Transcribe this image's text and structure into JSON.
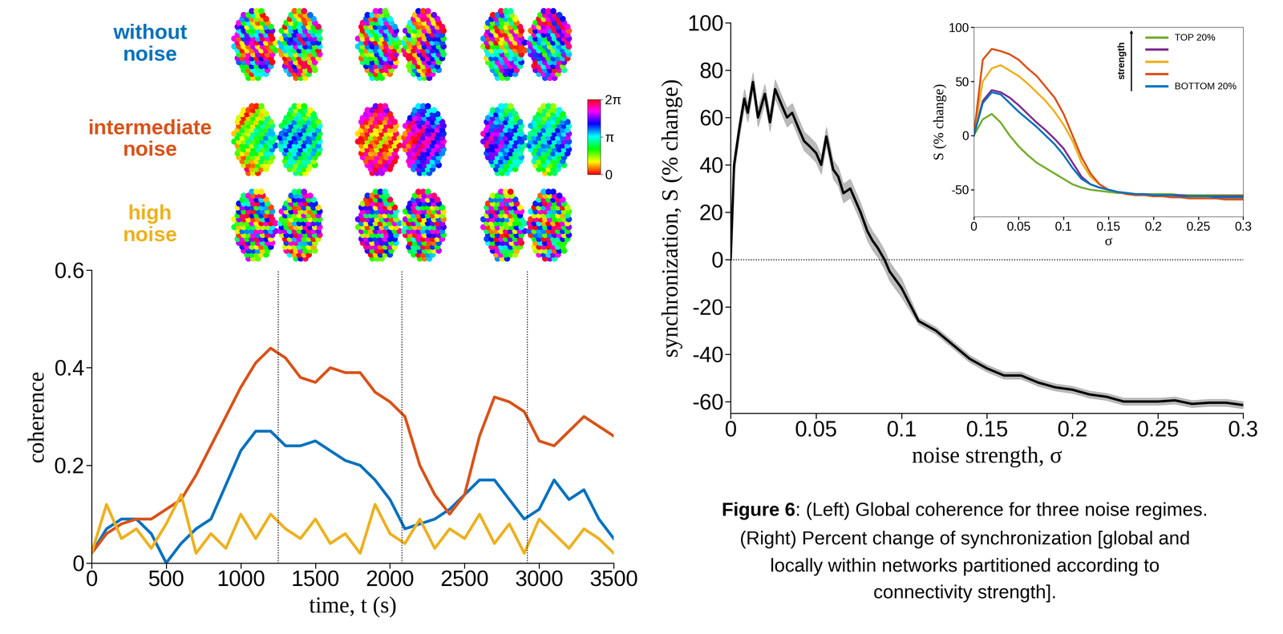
{
  "chart_data": [
    {
      "type": "line",
      "x_label": "time, t (s)",
      "y_label": "coherence",
      "x": [
        0,
        100,
        200,
        300,
        400,
        500,
        600,
        700,
        800,
        900,
        1000,
        1100,
        1200,
        1300,
        1400,
        1500,
        1600,
        1700,
        1800,
        1900,
        2000,
        2100,
        2200,
        2300,
        2400,
        2500,
        2600,
        2700,
        2800,
        2900,
        3000,
        3100,
        3200,
        3300,
        3400,
        3500
      ],
      "xlim": [
        0,
        3500
      ],
      "xticks": [
        0,
        500,
        1000,
        1500,
        2000,
        2500,
        3000,
        3500
      ],
      "ylim": [
        0,
        0.6
      ],
      "yticks": [
        0,
        0.2,
        0.4,
        0.6
      ],
      "snapshot_times": [
        1250,
        2080,
        2920
      ],
      "series": [
        {
          "name": "without noise",
          "color": "#0072BD",
          "values": [
            0.02,
            0.07,
            0.09,
            0.09,
            0.06,
            0.0,
            0.04,
            0.07,
            0.09,
            0.16,
            0.23,
            0.27,
            0.27,
            0.24,
            0.24,
            0.25,
            0.23,
            0.21,
            0.2,
            0.17,
            0.13,
            0.07,
            0.08,
            0.09,
            0.11,
            0.14,
            0.17,
            0.17,
            0.13,
            0.09,
            0.11,
            0.17,
            0.13,
            0.15,
            0.09,
            0.05
          ]
        },
        {
          "name": "intermediate noise",
          "color": "#D95319",
          "values": [
            0.02,
            0.06,
            0.08,
            0.09,
            0.09,
            0.11,
            0.13,
            0.18,
            0.24,
            0.3,
            0.36,
            0.41,
            0.44,
            0.42,
            0.38,
            0.37,
            0.4,
            0.39,
            0.39,
            0.35,
            0.33,
            0.3,
            0.2,
            0.14,
            0.1,
            0.14,
            0.26,
            0.34,
            0.33,
            0.31,
            0.25,
            0.24,
            0.27,
            0.3,
            0.28,
            0.26
          ]
        },
        {
          "name": "high noise",
          "color": "#EDB120",
          "values": [
            0.02,
            0.12,
            0.05,
            0.07,
            0.03,
            0.08,
            0.14,
            0.02,
            0.06,
            0.03,
            0.1,
            0.05,
            0.1,
            0.07,
            0.05,
            0.09,
            0.04,
            0.06,
            0.02,
            0.12,
            0.06,
            0.04,
            0.09,
            0.03,
            0.07,
            0.05,
            0.1,
            0.04,
            0.08,
            0.02,
            0.09,
            0.06,
            0.03,
            0.07,
            0.05,
            0.02
          ]
        }
      ],
      "colorbar": {
        "range": [
          0,
          6.283185307179586
        ],
        "ticks": [
          0,
          {
            "value": 3.141592653589793,
            "label": "π"
          },
          {
            "value": 6.283185307179586,
            "label": "2π"
          }
        ]
      }
    },
    {
      "type": "line",
      "x_label": "noise strength, σ",
      "y_label": "synchronization, S (% change)",
      "xlim": [
        0,
        0.3
      ],
      "xticks": [
        0,
        0.05,
        0.1,
        0.15,
        0.2,
        0.25,
        0.3
      ],
      "ylim": [
        -65,
        100
      ],
      "yticks": [
        -60,
        -40,
        -20,
        0,
        20,
        40,
        60,
        80,
        100
      ],
      "hline": 0,
      "series": [
        {
          "color": "#000000",
          "x": [
            0,
            0.002,
            0.005,
            0.008,
            0.01,
            0.013,
            0.016,
            0.02,
            0.023,
            0.026,
            0.03,
            0.033,
            0.036,
            0.04,
            0.043,
            0.046,
            0.05,
            0.053,
            0.056,
            0.06,
            0.063,
            0.066,
            0.07,
            0.073,
            0.076,
            0.08,
            0.083,
            0.086,
            0.09,
            0.093,
            0.096,
            0.1,
            0.11,
            0.12,
            0.13,
            0.14,
            0.15,
            0.16,
            0.17,
            0.18,
            0.19,
            0.2,
            0.21,
            0.22,
            0.23,
            0.24,
            0.25,
            0.26,
            0.27,
            0.28,
            0.29,
            0.3
          ],
          "values": [
            0,
            40,
            55,
            68,
            62,
            75,
            60,
            70,
            58,
            72,
            65,
            60,
            62,
            55,
            50,
            48,
            45,
            40,
            52,
            38,
            35,
            28,
            30,
            25,
            20,
            12,
            8,
            5,
            0,
            -5,
            -8,
            -12,
            -26,
            -30,
            -36,
            -42,
            -46,
            -49,
            -49,
            -52,
            -54,
            -55,
            -57,
            -58,
            -60,
            -60,
            -60,
            -59.5,
            -61,
            -60.5,
            -60.5,
            -61.5
          ],
          "error": [
            4,
            4,
            4,
            4,
            4,
            4,
            4,
            4,
            4,
            4,
            4,
            4,
            4,
            4,
            4,
            4,
            4,
            4,
            4,
            4,
            4,
            4,
            4,
            4,
            4,
            4,
            4,
            4,
            4,
            4,
            4,
            4,
            1.5,
            1.5,
            1.5,
            1.5,
            1.5,
            1.5,
            1.5,
            1.5,
            1.5,
            1.5,
            1.5,
            1.5,
            1.5,
            1.5,
            1.5,
            1.5,
            1.5,
            1.5,
            1.5,
            1.5
          ]
        }
      ]
    },
    {
      "type": "line",
      "x_label": "σ",
      "y_label": "S (% change)",
      "x": [
        0,
        0.01,
        0.02,
        0.03,
        0.04,
        0.05,
        0.06,
        0.07,
        0.08,
        0.09,
        0.1,
        0.11,
        0.12,
        0.13,
        0.14,
        0.15,
        0.16,
        0.17,
        0.18,
        0.19,
        0.2,
        0.21,
        0.22,
        0.23,
        0.24,
        0.25,
        0.26,
        0.27,
        0.28,
        0.29,
        0.3
      ],
      "xlim": [
        0,
        0.3
      ],
      "xticks": [
        0,
        0.05,
        0.1,
        0.15,
        0.2,
        0.25,
        0.3
      ],
      "ylim": [
        -75,
        100
      ],
      "yticks": [
        -50,
        0,
        50,
        100
      ],
      "legend": "upper right",
      "legend_title": "strength",
      "series": [
        {
          "name": "TOP 20%",
          "color": "#77AC30",
          "values": [
            0,
            15,
            20,
            12,
            0,
            -10,
            -18,
            -25,
            -30,
            -35,
            -40,
            -45,
            -48,
            -50,
            -51,
            -52,
            -53,
            -53,
            -54,
            -54,
            -54,
            -54,
            -54,
            -55,
            -55,
            -55,
            -55,
            -55,
            -55,
            -55,
            -55
          ]
        },
        {
          "name": null,
          "color": "#7E2F8E",
          "values": [
            0,
            32,
            42,
            40,
            35,
            28,
            20,
            12,
            5,
            -3,
            -12,
            -25,
            -38,
            -45,
            -48,
            -50,
            -52,
            -53,
            -54,
            -54,
            -55,
            -55,
            -55,
            -55,
            -56,
            -56,
            -56,
            -56,
            -56,
            -56,
            -56
          ]
        },
        {
          "name": null,
          "color": "#EDB120",
          "values": [
            0,
            50,
            62,
            65,
            60,
            55,
            48,
            40,
            32,
            22,
            10,
            -5,
            -25,
            -38,
            -45,
            -50,
            -52,
            -54,
            -55,
            -55,
            -56,
            -56,
            -56,
            -57,
            -57,
            -57,
            -58,
            -58,
            -58,
            -58,
            -58
          ]
        },
        {
          "name": null,
          "color": "#D95319",
          "values": [
            0,
            70,
            80,
            78,
            75,
            70,
            62,
            55,
            45,
            35,
            20,
            0,
            -20,
            -35,
            -45,
            -50,
            -52,
            -54,
            -55,
            -55,
            -56,
            -56,
            -57,
            -57,
            -58,
            -58,
            -58,
            -58,
            -59,
            -59,
            -59
          ]
        },
        {
          "name": "BOTTOM 20%",
          "color": "#0072BD",
          "values": [
            0,
            30,
            40,
            38,
            30,
            22,
            15,
            8,
            0,
            -8,
            -18,
            -30,
            -40,
            -45,
            -48,
            -50,
            -52,
            -53,
            -54,
            -54,
            -55,
            -55,
            -55,
            -56,
            -56,
            -56,
            -56,
            -57,
            -57,
            -57,
            -57
          ]
        }
      ]
    }
  ],
  "caption": {
    "label": "Figure 6",
    "lines": [
      ": (Left) Global coherence for three noise regimes.",
      "(Right) Percent change of synchronization [global and",
      "locally within networks partitioned according to",
      "connectivity strength]."
    ]
  }
}
